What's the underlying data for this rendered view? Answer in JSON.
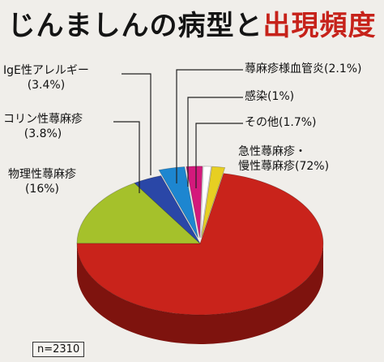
{
  "title": {
    "part1": "じんましんの病型と",
    "part2": "出現頻度"
  },
  "sample": "n=2310",
  "chart_data": {
    "type": "pie",
    "title": "じんましんの病型と出現頻度",
    "slices": [
      {
        "name": "急性蕁麻疹・慢性蕁麻疹",
        "pct_label": "(72%)",
        "value": 72,
        "color": "#c9231b",
        "side": "#7e130e",
        "explode": 0
      },
      {
        "name": "物理性蕁麻疹",
        "pct_label": "(16%)",
        "value": 16,
        "color": "#a5c12b",
        "side": "#62761a",
        "explode": 0
      },
      {
        "name": "コリン性蕁麻疹",
        "pct_label": "(3.8%)",
        "value": 3.8,
        "color": "#2a47a7",
        "side": "#172a66",
        "explode": 0
      },
      {
        "name": "IgE性アレルギー",
        "pct_label": "(3.4%)",
        "value": 3.4,
        "color": "#1d86d0",
        "side": "#104f7d",
        "explode": 1
      },
      {
        "name": "蕁麻疹様血管炎",
        "pct_label": "(2.1%)",
        "value": 2.1,
        "color": "#d4197c",
        "side": "#7d0e49",
        "explode": 1
      },
      {
        "name": "感染",
        "pct_label": "(1%)",
        "value": 1,
        "color": "#ffffff",
        "side": "#aaaaaa",
        "explode": 1
      },
      {
        "name": "その他",
        "pct_label": "(1.7%)",
        "value": 1.7,
        "color": "#e7cf22",
        "side": "#8f7f12",
        "explode": 1
      }
    ]
  }
}
